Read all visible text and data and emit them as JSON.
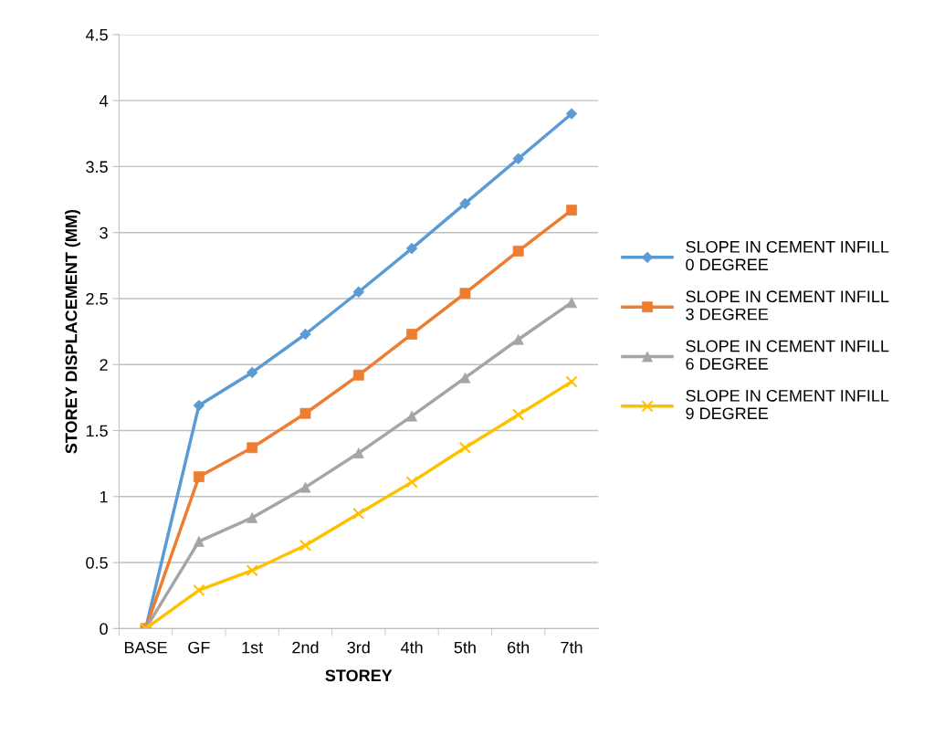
{
  "chart_data": {
    "type": "line",
    "xlabel": "STOREY",
    "ylabel": "STOREY DISPLACEMENT (MM)",
    "categories": [
      "BASE",
      "GF",
      "1st",
      "2nd",
      "3rd",
      "4th",
      "5th",
      "6th",
      "7th"
    ],
    "series": [
      {
        "name": "SLOPE IN CEMENT INFILL\n0 DEGREE",
        "color": "#5b9bd5",
        "marker": "diamond",
        "values": [
          0,
          1.69,
          1.94,
          2.23,
          2.55,
          2.88,
          3.22,
          3.56,
          3.9
        ]
      },
      {
        "name": "SLOPE IN CEMENT INFILL\n3 DEGREE",
        "color": "#ed7d31",
        "marker": "square",
        "values": [
          0,
          1.15,
          1.37,
          1.63,
          1.92,
          2.23,
          2.54,
          2.86,
          3.17
        ]
      },
      {
        "name": "SLOPE IN CEMENT INFILL\n6 DEGREE",
        "color": "#a5a5a5",
        "marker": "triangle",
        "values": [
          0,
          0.66,
          0.84,
          1.07,
          1.33,
          1.61,
          1.9,
          2.19,
          2.47
        ]
      },
      {
        "name": "SLOPE IN CEMENT INFILL\n9 DEGREE",
        "color": "#ffc000",
        "marker": "cross",
        "values": [
          0,
          0.29,
          0.44,
          0.63,
          0.87,
          1.11,
          1.37,
          1.62,
          1.87
        ]
      }
    ],
    "ylim": [
      0,
      4.5
    ],
    "yticks": [
      0,
      0.5,
      1,
      1.5,
      2,
      2.5,
      3,
      3.5,
      4,
      4.5
    ],
    "grid": "y",
    "legend": "right"
  }
}
